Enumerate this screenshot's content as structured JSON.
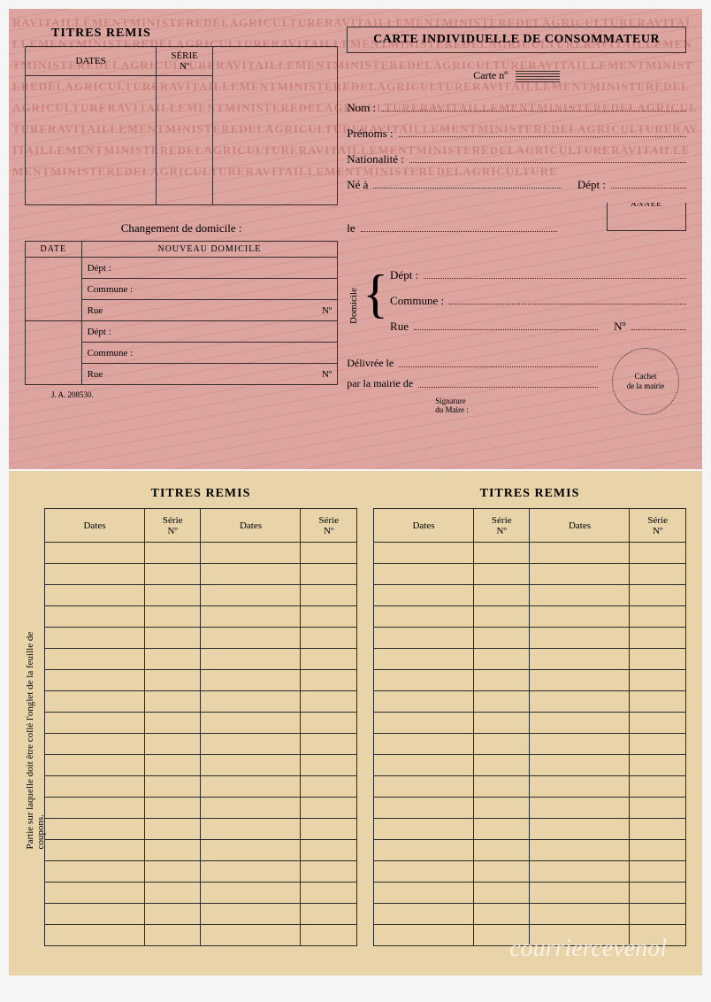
{
  "top": {
    "bg_repeat_text": "RAVITAILLEMENTMINISTEREDELAGRICULTURERAVITAILLEMENTMINISTEREDELAGRICULTURERAVITAILLEMENTMINISTEREDELAGRICULTURERAVITAILLEMENTMINISTEREDELAGRICULTURERAVITAILLEMENTMINISTEREDELAGRICULTURERAVITAILLEMENTMINISTEREDELAGRICULTURERAVITAILLEMENTMINISTEREDELAGRICULTURERAVITAILLEMENTMINISTEREDELAGRICULTURERAVITAILLEMENTMINISTEREDELAGRICULTURERAVITAILLEMENTMINISTEREDELAGRICULTURERAVITAILLEMENTMINISTEREDELAGRICULTURERAVITAILLEMENTMINISTEREDELAGRICULTURERAVITAILLEMENTMINISTEREDELAGRICULTURERAVITAILLEMENTMINISTEREDELAGRICULTURERAVITAILLEMENTMINISTEREDELAGRICULTURERAVITAILLEMENTMINISTEREDELAGRICULTURERAVITAILLEMENTMINISTEREDELAGRICULTURE",
    "titres_remis": "TITRES REMIS",
    "dates": "DATES",
    "serie": "SÉRIE",
    "serie_no": "Nº",
    "changement": "Changement de domicile :",
    "date": "DATE",
    "nouveau_domicile": "NOUVEAU DOMICILE",
    "dept": "Dépt :",
    "commune": "Commune :",
    "rue": "Rue",
    "no": "Nº",
    "ref": "J. A.  208530.",
    "main_title": "CARTE INDIVIDUELLE DE CONSOMMATEUR",
    "carte_no": "Carte nº",
    "nom": "Nom :",
    "prenoms": "Prénoms :",
    "nationalite": "Nationalité :",
    "ne_a": "Né à",
    "dept2": "Dépt :",
    "annee": "ANNÉE",
    "le": "le",
    "domicile": "Domicile",
    "dom_dept": "Dépt :",
    "dom_commune": "Commune :",
    "dom_rue": "Rue",
    "dom_no": "Nº",
    "delivree": "Délivrée le",
    "par_mairie": "par la mairie de",
    "cachet": "Cachet",
    "cachet2": "de la mairie",
    "signature": "Signature",
    "signature2": "du Maire :",
    "colors": {
      "background": "#dda5a0",
      "ink": "#3a2a2a",
      "bg_text": "rgba(180,85,85,0.4)"
    }
  },
  "bottom": {
    "titres_remis": "TITRES REMIS",
    "dates": "Dates",
    "serie": "Série",
    "serie_no": "Nº",
    "side_text": "Partie sur laquelle doit être collé l'onglet de la feuille de coupons.",
    "row_count": 19,
    "colors": {
      "background": "#e8d4a8",
      "ink": "#2a2a2a"
    }
  },
  "watermark": "courriercevenol"
}
